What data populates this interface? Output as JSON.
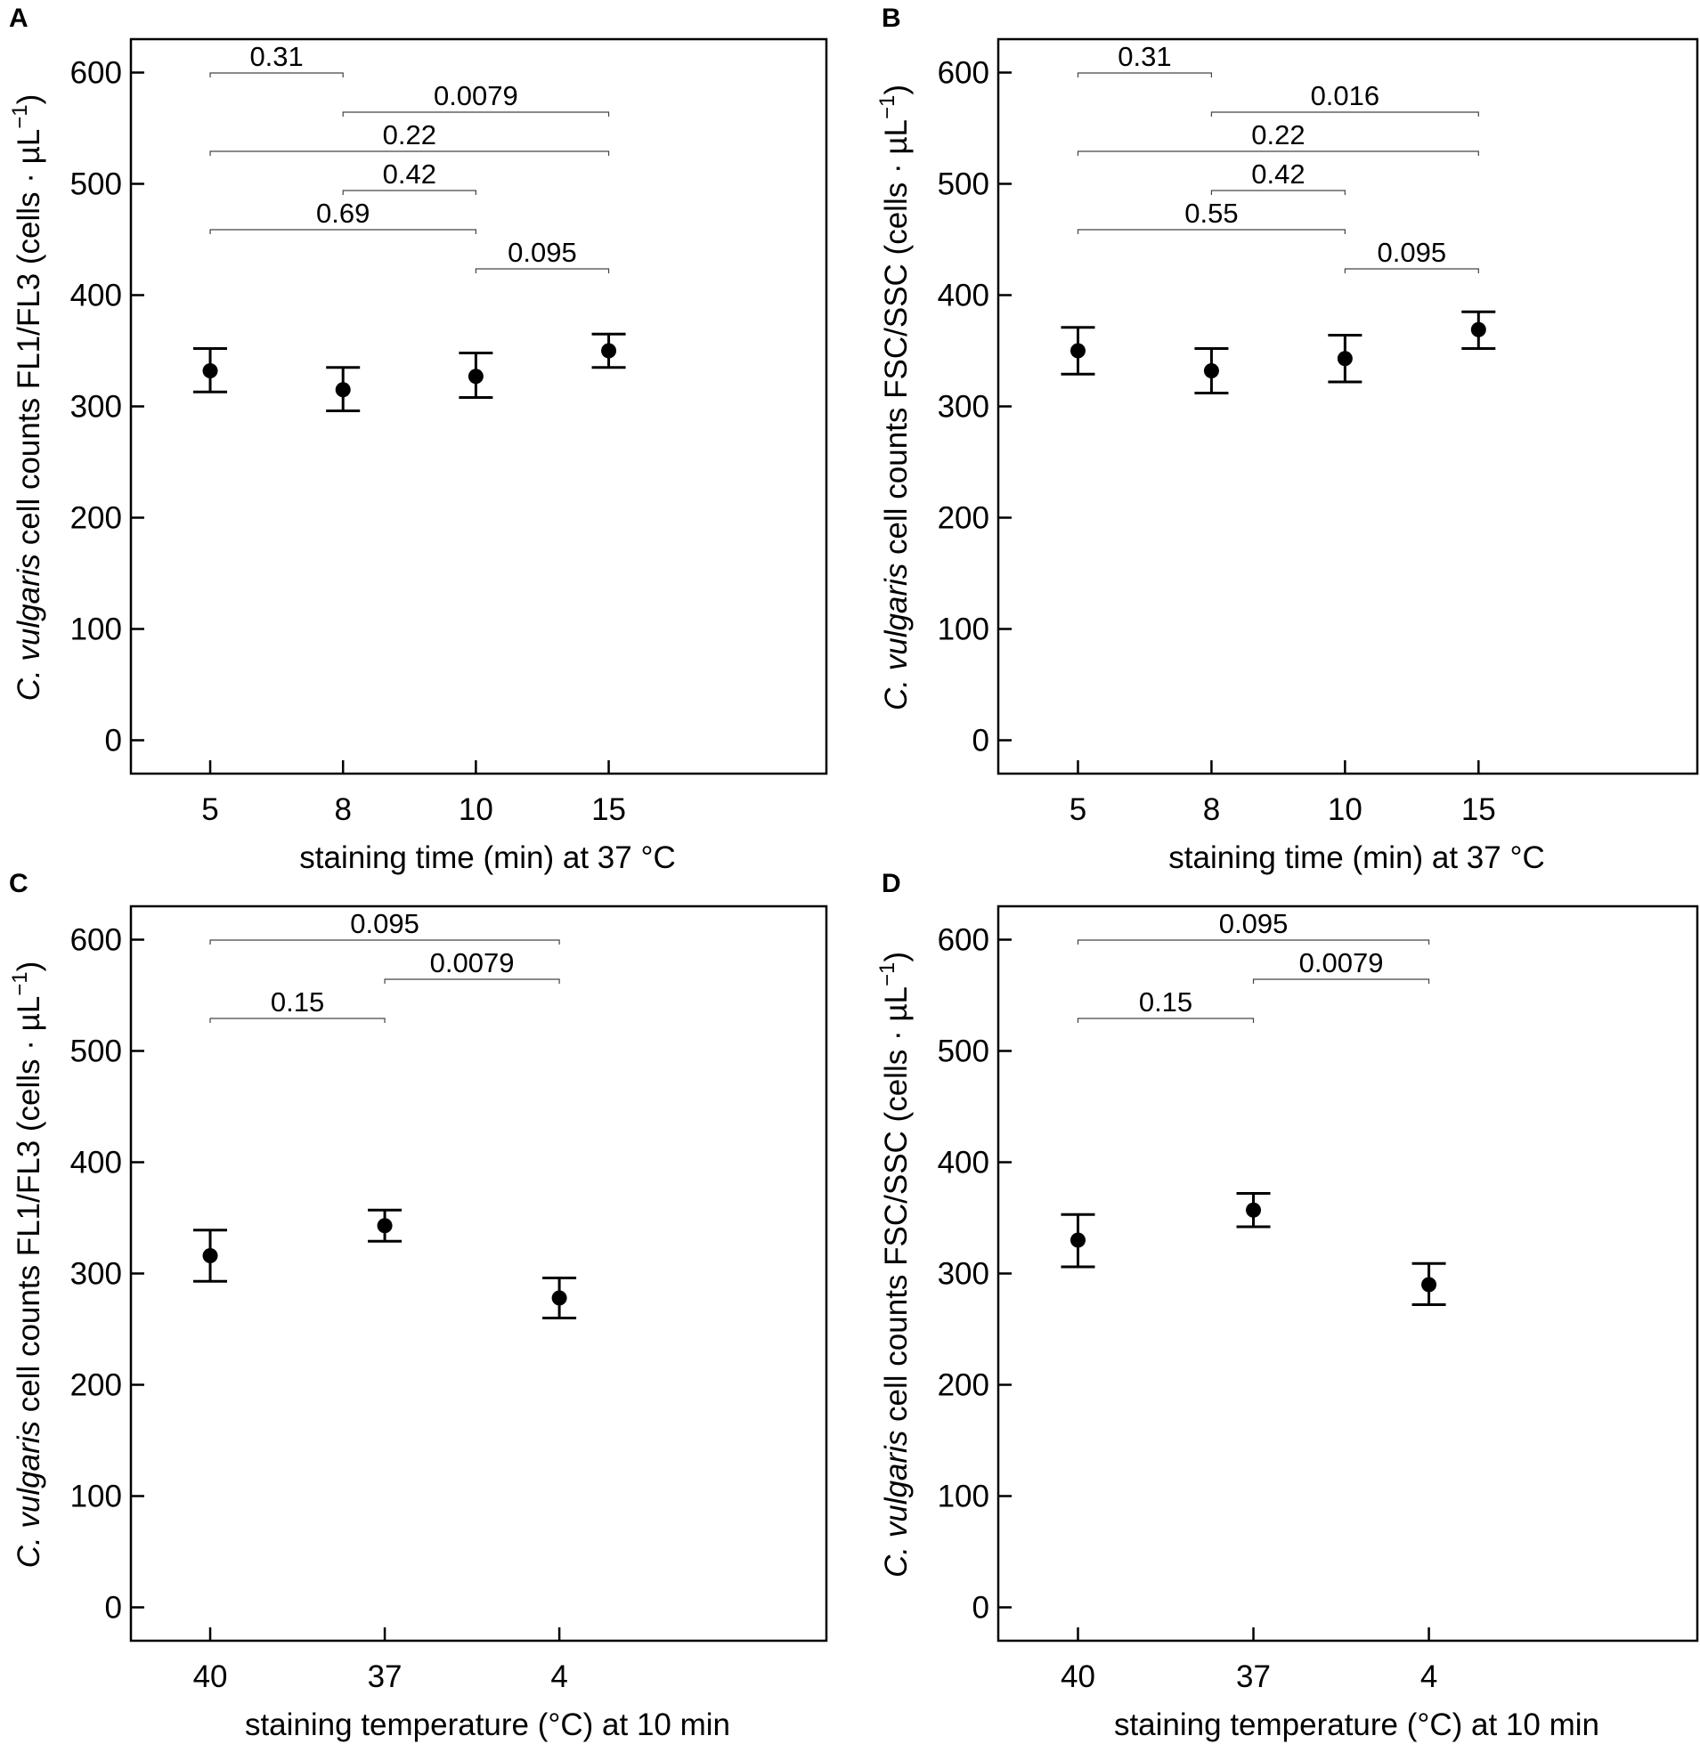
{
  "chart_data": [
    {
      "panel": "A",
      "type": "scatter",
      "error_bars": true,
      "ylabel_italic": "C. vulgaris",
      "ylabel_rest": " cell counts FL1/FL3 (cells · µL",
      "ylabel_sup": "−1",
      "ylabel_close": ")",
      "xlabel": "staining time (min) at 37 °C",
      "categories": [
        "5",
        "8",
        "10",
        "15"
      ],
      "ylim": [
        -30,
        630
      ],
      "yticks": [
        0,
        100,
        200,
        300,
        400,
        500,
        600
      ],
      "points": [
        {
          "x": "5",
          "y": 332,
          "lo": 313,
          "hi": 352
        },
        {
          "x": "8",
          "y": 315,
          "lo": 296,
          "hi": 335
        },
        {
          "x": "10",
          "y": 327,
          "lo": 308,
          "hi": 348
        },
        {
          "x": "15",
          "y": 350,
          "lo": 335,
          "hi": 365
        }
      ],
      "brackets": [
        {
          "from": "5",
          "to": "8",
          "label": "0.31"
        },
        {
          "from": "8",
          "to": "15",
          "label": "0.0079"
        },
        {
          "from": "5",
          "to": "15",
          "label": "0.22"
        },
        {
          "from": "8",
          "to": "10",
          "label": "0.42"
        },
        {
          "from": "5",
          "to": "10",
          "label": "0.69"
        },
        {
          "from": "10",
          "to": "15",
          "label": "0.095"
        }
      ]
    },
    {
      "panel": "B",
      "type": "scatter",
      "error_bars": true,
      "ylabel_italic": "C. vulgaris",
      "ylabel_rest": " cell counts FSC/SSC (cells · µL",
      "ylabel_sup": "−1",
      "ylabel_close": ")",
      "xlabel": "staining time (min) at 37 °C",
      "categories": [
        "5",
        "8",
        "10",
        "15"
      ],
      "ylim": [
        -30,
        630
      ],
      "yticks": [
        0,
        100,
        200,
        300,
        400,
        500,
        600
      ],
      "points": [
        {
          "x": "5",
          "y": 350,
          "lo": 329,
          "hi": 371
        },
        {
          "x": "8",
          "y": 332,
          "lo": 312,
          "hi": 352
        },
        {
          "x": "10",
          "y": 343,
          "lo": 322,
          "hi": 364
        },
        {
          "x": "15",
          "y": 369,
          "lo": 352,
          "hi": 385
        }
      ],
      "brackets": [
        {
          "from": "5",
          "to": "8",
          "label": "0.31"
        },
        {
          "from": "8",
          "to": "15",
          "label": "0.016"
        },
        {
          "from": "5",
          "to": "15",
          "label": "0.22"
        },
        {
          "from": "8",
          "to": "10",
          "label": "0.42"
        },
        {
          "from": "5",
          "to": "10",
          "label": "0.55"
        },
        {
          "from": "10",
          "to": "15",
          "label": "0.095"
        }
      ]
    },
    {
      "panel": "C",
      "type": "scatter",
      "error_bars": true,
      "ylabel_italic": "C. vulgaris",
      "ylabel_rest": " cell counts FL1/FL3 (cells · µL",
      "ylabel_sup": "−1",
      "ylabel_close": ")",
      "xlabel": "staining temperature (°C) at 10 min",
      "categories": [
        "40",
        "37",
        "4"
      ],
      "ylim": [
        -30,
        630
      ],
      "yticks": [
        0,
        100,
        200,
        300,
        400,
        500,
        600
      ],
      "points": [
        {
          "x": "40",
          "y": 316,
          "lo": 293,
          "hi": 339
        },
        {
          "x": "37",
          "y": 343,
          "lo": 329,
          "hi": 357
        },
        {
          "x": "4",
          "y": 278,
          "lo": 260,
          "hi": 296
        }
      ],
      "brackets": [
        {
          "from": "40",
          "to": "4",
          "label": "0.095"
        },
        {
          "from": "37",
          "to": "4",
          "label": "0.0079"
        },
        {
          "from": "40",
          "to": "37",
          "label": "0.15"
        }
      ]
    },
    {
      "panel": "D",
      "type": "scatter",
      "error_bars": true,
      "ylabel_italic": "C. vulgaris",
      "ylabel_rest": " cell counts FSC/SSC (cells · µL",
      "ylabel_sup": "−1",
      "ylabel_close": ")",
      "xlabel": "staining temperature (°C) at 10 min",
      "categories": [
        "40",
        "37",
        "4"
      ],
      "ylim": [
        -30,
        630
      ],
      "yticks": [
        0,
        100,
        200,
        300,
        400,
        500,
        600
      ],
      "points": [
        {
          "x": "40",
          "y": 330,
          "lo": 306,
          "hi": 353
        },
        {
          "x": "37",
          "y": 357,
          "lo": 342,
          "hi": 372
        },
        {
          "x": "4",
          "y": 290,
          "lo": 272,
          "hi": 309
        }
      ],
      "brackets": [
        {
          "from": "40",
          "to": "4",
          "label": "0.095"
        },
        {
          "from": "37",
          "to": "4",
          "label": "0.0079"
        },
        {
          "from": "40",
          "to": "37",
          "label": "0.15"
        }
      ]
    }
  ]
}
